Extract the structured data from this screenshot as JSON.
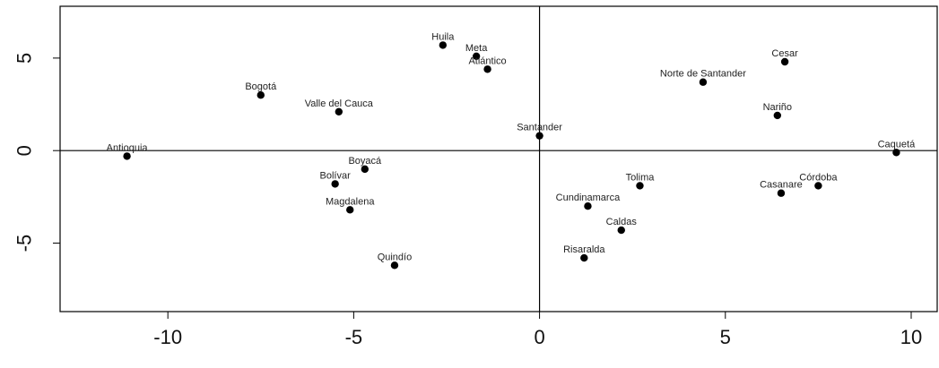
{
  "chart_data": {
    "type": "scatter",
    "title": "",
    "xlabel": "",
    "ylabel": "",
    "xlim": [
      -12.9,
      10.7
    ],
    "ylim": [
      -8.7,
      7.8
    ],
    "xticks": [
      -10,
      -5,
      0,
      5,
      10
    ],
    "yticks": [
      -5,
      0,
      5
    ],
    "xtick_labels": [
      "-10",
      "-5",
      "0",
      "5",
      "10"
    ],
    "ytick_labels": [
      "-5",
      "0",
      "5"
    ],
    "reference_lines": {
      "x": 0,
      "y": 0
    },
    "grid": false,
    "point_color": "#000000",
    "points": [
      {
        "label": "Antioquia",
        "x": -11.1,
        "y": -0.3
      },
      {
        "label": "Bogotá",
        "x": -7.5,
        "y": 3.0
      },
      {
        "label": "Valle del Cauca",
        "x": -5.4,
        "y": 2.1
      },
      {
        "label": "Huila",
        "x": -2.6,
        "y": 5.7
      },
      {
        "label": "Meta",
        "x": -1.7,
        "y": 5.1
      },
      {
        "label": "Atlántico",
        "x": -1.4,
        "y": 4.4
      },
      {
        "label": "Santander",
        "x": 0.0,
        "y": 0.8
      },
      {
        "label": "Boyacá",
        "x": -4.7,
        "y": -1.0
      },
      {
        "label": "Bolívar",
        "x": -5.5,
        "y": -1.8
      },
      {
        "label": "Magdalena",
        "x": -5.1,
        "y": -3.2
      },
      {
        "label": "Quindío",
        "x": -3.9,
        "y": -6.2
      },
      {
        "label": "Norte de Santander",
        "x": 4.4,
        "y": 3.7
      },
      {
        "label": "Cesar",
        "x": 6.6,
        "y": 4.8
      },
      {
        "label": "Nariño",
        "x": 6.4,
        "y": 1.9
      },
      {
        "label": "Caquetá",
        "x": 9.6,
        "y": -0.1
      },
      {
        "label": "Tolima",
        "x": 2.7,
        "y": -1.9
      },
      {
        "label": "Cundinamarca",
        "x": 1.3,
        "y": -3.0
      },
      {
        "label": "Caldas",
        "x": 2.2,
        "y": -4.3
      },
      {
        "label": "Risaralda",
        "x": 1.2,
        "y": -5.8
      },
      {
        "label": "Casanare",
        "x": 6.5,
        "y": -2.3
      },
      {
        "label": "Córdoba",
        "x": 7.5,
        "y": -1.9
      }
    ]
  }
}
